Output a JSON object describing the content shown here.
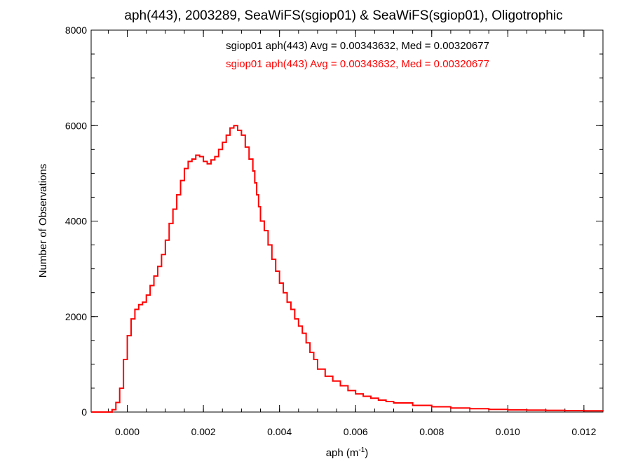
{
  "chart_data": {
    "type": "line",
    "title": "aph(443), 2003289, SeaWiFS(sgiop01) & SeaWiFS(sgiop01), Oligotrophic",
    "xlabel": "aph (m",
    "xlabel_sup": "-1",
    "xlabel_close": ")",
    "ylabel": "Number of Observations",
    "xlim": [
      -0.00095,
      0.0125
    ],
    "ylim": [
      0,
      8000
    ],
    "xticks": [
      0.0,
      0.002,
      0.004,
      0.006,
      0.008,
      0.01,
      0.012
    ],
    "xtick_labels": [
      "0.000",
      "0.002",
      "0.004",
      "0.006",
      "0.008",
      "0.010",
      "0.012"
    ],
    "yticks": [
      0,
      2000,
      4000,
      6000,
      8000
    ],
    "ytick_labels": [
      "0",
      "2000",
      "4000",
      "6000",
      "8000"
    ],
    "grid": false,
    "annotations": [
      {
        "text": "sgiop01 aph(443) Avg = 0.00343632, Med = 0.00320677",
        "color": "#000000"
      },
      {
        "text": "sgiop01 aph(443) Avg = 0.00343632, Med = 0.00320677",
        "color": "#ff0000"
      }
    ],
    "series": [
      {
        "color": "#ff0000",
        "style": "step",
        "x": [
          -0.00095,
          -0.0006,
          -0.0004,
          -0.0003,
          -0.0002,
          -0.0001,
          0.0,
          0.0001,
          0.0002,
          0.0003,
          0.0004,
          0.0005,
          0.0006,
          0.0007,
          0.0008,
          0.0009,
          0.001,
          0.0011,
          0.0012,
          0.0013,
          0.0014,
          0.0015,
          0.0016,
          0.0017,
          0.0018,
          0.0019,
          0.002,
          0.0021,
          0.0022,
          0.0023,
          0.0024,
          0.0025,
          0.0026,
          0.0027,
          0.0028,
          0.0029,
          0.003,
          0.0031,
          0.0032,
          0.0033,
          0.00335,
          0.0034,
          0.00345,
          0.0035,
          0.0036,
          0.0037,
          0.0038,
          0.0039,
          0.004,
          0.0041,
          0.0042,
          0.0043,
          0.0044,
          0.0045,
          0.0046,
          0.0047,
          0.0048,
          0.0049,
          0.005,
          0.0052,
          0.0054,
          0.0056,
          0.0058,
          0.006,
          0.0062,
          0.0064,
          0.0066,
          0.0068,
          0.007,
          0.0075,
          0.008,
          0.0085,
          0.009,
          0.0095,
          0.01,
          0.0105,
          0.011,
          0.0115,
          0.012,
          0.0125
        ],
        "y": [
          0,
          0,
          50,
          200,
          500,
          1100,
          1600,
          1950,
          2150,
          2250,
          2300,
          2450,
          2650,
          2850,
          3050,
          3300,
          3600,
          3950,
          4250,
          4550,
          4850,
          5100,
          5250,
          5300,
          5380,
          5350,
          5250,
          5200,
          5280,
          5350,
          5500,
          5650,
          5800,
          5950,
          6000,
          5900,
          5800,
          5550,
          5300,
          5050,
          4800,
          4550,
          4300,
          4000,
          3800,
          3500,
          3200,
          2950,
          2700,
          2500,
          2300,
          2150,
          1950,
          1800,
          1650,
          1450,
          1250,
          1100,
          900,
          750,
          650,
          550,
          450,
          380,
          330,
          290,
          250,
          220,
          190,
          140,
          110,
          85,
          70,
          55,
          45,
          40,
          35,
          30,
          25,
          20
        ]
      }
    ]
  }
}
